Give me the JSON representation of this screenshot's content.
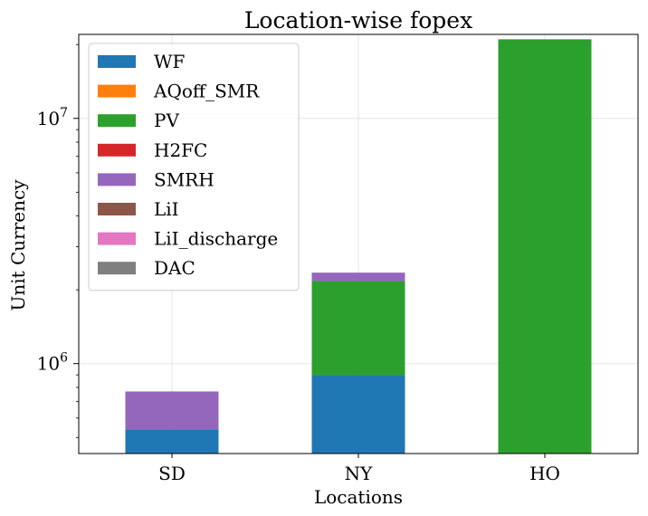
{
  "chart_data": {
    "type": "bar",
    "stacked": true,
    "title": "Location-wise fopex",
    "xlabel": "Locations",
    "ylabel": "Unit Currency",
    "yscale": "log",
    "ylim": [
      430000,
      22000000
    ],
    "grid": true,
    "legend_position": "upper-left",
    "categories": [
      "SD",
      "NY",
      "HO"
    ],
    "y_ticks": [
      {
        "value": 1000000,
        "base": "10",
        "exp": "6"
      },
      {
        "value": 10000000,
        "base": "10",
        "exp": "7"
      }
    ],
    "series": [
      {
        "name": "WF",
        "color": "#1f77b4",
        "values": [
          540000,
          900000,
          0
        ]
      },
      {
        "name": "AQoff_SMR",
        "color": "#ff7f0e",
        "values": [
          0,
          0,
          0
        ]
      },
      {
        "name": "PV",
        "color": "#2ca02c",
        "values": [
          0,
          1270000,
          21000000
        ]
      },
      {
        "name": "H2FC",
        "color": "#d62728",
        "values": [
          0,
          0,
          0
        ]
      },
      {
        "name": "SMRH",
        "color": "#9467bd",
        "values": [
          230000,
          180000,
          20000
        ]
      },
      {
        "name": "LiI",
        "color": "#8c564b",
        "values": [
          0,
          0,
          0
        ]
      },
      {
        "name": "LiI_discharge",
        "color": "#e377c2",
        "values": [
          0,
          0,
          0
        ]
      },
      {
        "name": "DAC",
        "color": "#7f7f7f",
        "values": [
          0,
          0,
          0
        ]
      }
    ]
  }
}
